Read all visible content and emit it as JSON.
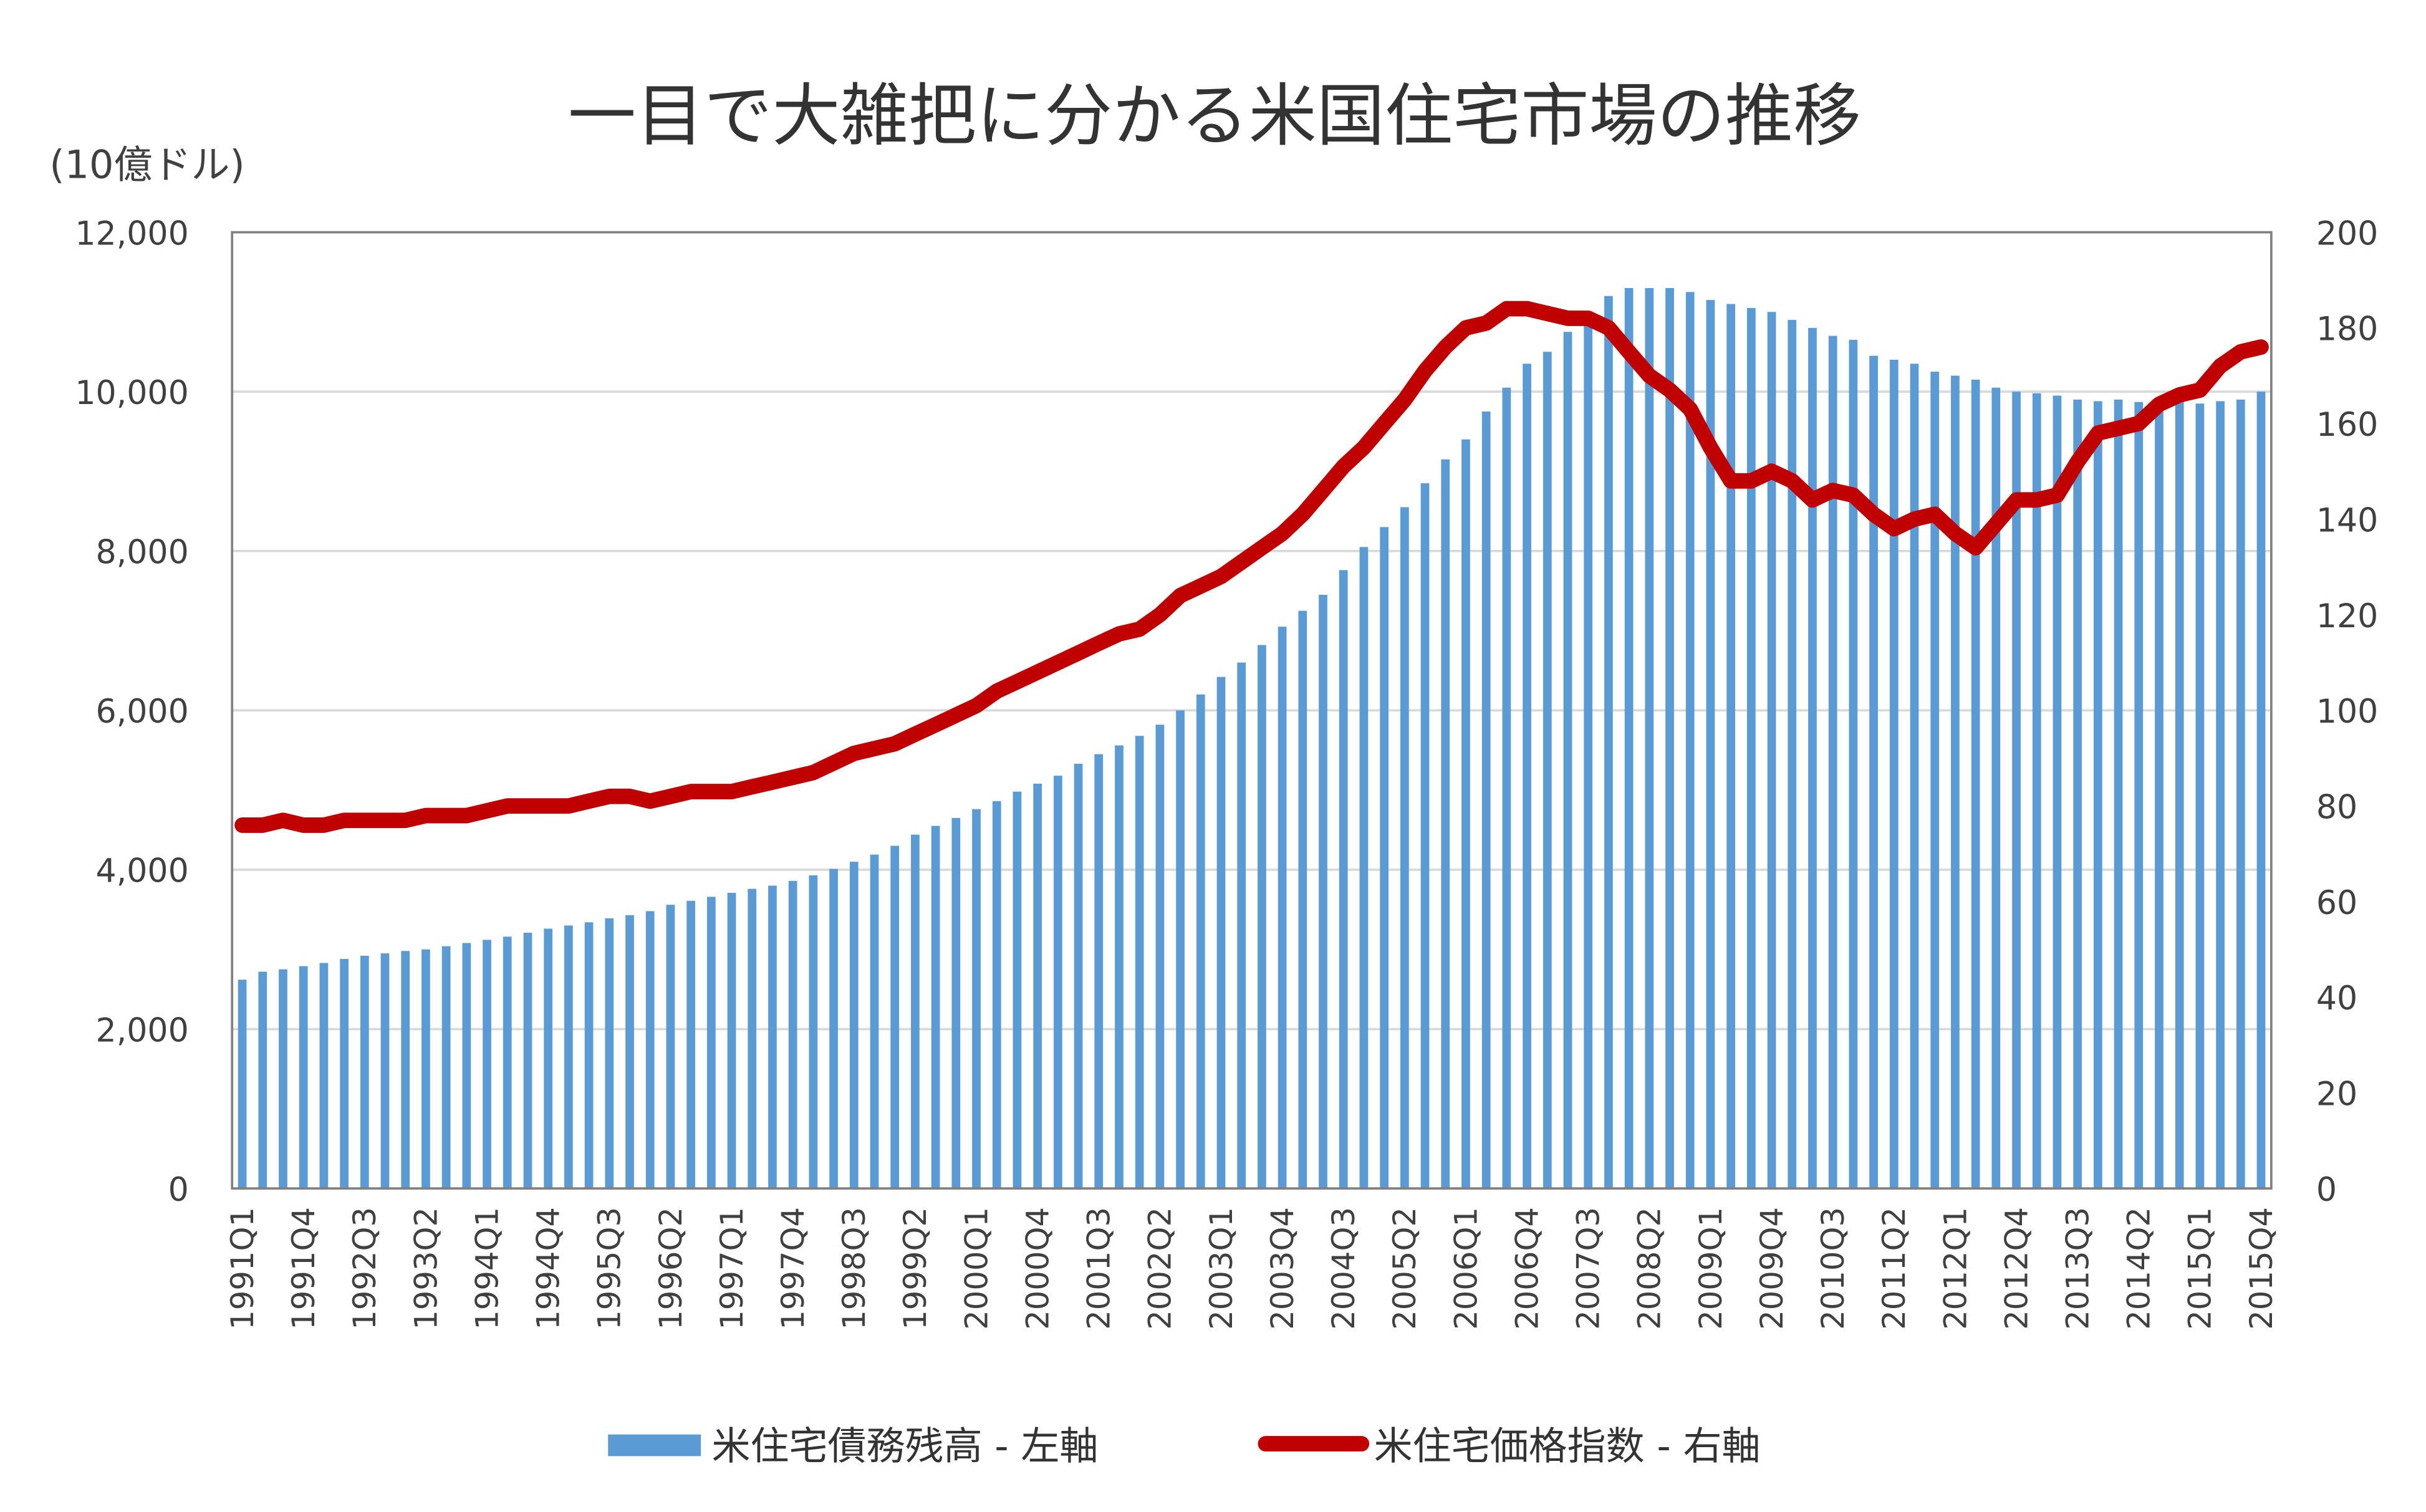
{
  "chart_data": {
    "type": "bar+line",
    "title": "一目で大雑把に分かる米国住宅市場の推移",
    "ylabel_left": "(10億ドル)",
    "y_left_ticks": [
      "0",
      "2,000",
      "4,000",
      "6,000",
      "8,000",
      "10,000",
      "12,000"
    ],
    "y_left_range": [
      0,
      12000
    ],
    "y_right_ticks": [
      "0",
      "20",
      "40",
      "60",
      "80",
      "100",
      "120",
      "140",
      "160",
      "180",
      "200"
    ],
    "y_right_range": [
      0,
      200
    ],
    "grid": true,
    "legend_position": "bottom",
    "x_first": "1991Q1",
    "x_last": "2015Q4",
    "x_tick_labels": [
      "1991Q1",
      "1991Q4",
      "1992Q3",
      "1993Q2",
      "1994Q1",
      "1994Q4",
      "1995Q3",
      "1996Q2",
      "1997Q1",
      "1997Q4",
      "1998Q3",
      "1999Q2",
      "2000Q1",
      "2000Q4",
      "2001Q3",
      "2002Q2",
      "2003Q1",
      "2003Q4",
      "2004Q3",
      "2005Q2",
      "2006Q1",
      "2006Q4",
      "2007Q3",
      "2008Q2",
      "2009Q1",
      "2009Q4",
      "2010Q3",
      "2011Q2",
      "2012Q1",
      "2012Q4",
      "2013Q3",
      "2014Q2",
      "2015Q1",
      "2015Q4"
    ],
    "series": [
      {
        "name": "米住宅債務残高 - 左軸",
        "type": "bar",
        "axis": "left",
        "color": "#5B9BD5",
        "values": [
          2620,
          2720,
          2750,
          2790,
          2830,
          2880,
          2920,
          2950,
          2980,
          3000,
          3040,
          3080,
          3120,
          3160,
          3210,
          3260,
          3300,
          3340,
          3390,
          3430,
          3480,
          3560,
          3610,
          3660,
          3710,
          3760,
          3800,
          3860,
          3930,
          4010,
          4100,
          4190,
          4300,
          4440,
          4550,
          4650,
          4760,
          4860,
          4980,
          5080,
          5180,
          5330,
          5450,
          5560,
          5680,
          5820,
          6000,
          6200,
          6420,
          6600,
          6820,
          7050,
          7250,
          7450,
          7760,
          8050,
          8300,
          8550,
          8850,
          9150,
          9400,
          9750,
          10050,
          10350,
          10500,
          10750,
          10950,
          11200,
          11300,
          11300,
          11300,
          11250,
          11150,
          11100,
          11050,
          11000,
          10900,
          10800,
          10700,
          10650,
          10450,
          10400,
          10350,
          10250,
          10200,
          10150,
          10050,
          10000,
          9980,
          9950,
          9900,
          9880,
          9900,
          9870,
          9880,
          9900,
          9850,
          9880,
          9900,
          10000
        ]
      },
      {
        "name": "米住宅価格指数 - 右軸",
        "type": "line",
        "axis": "right",
        "color": "#C00000",
        "values": [
          76,
          76,
          77,
          76,
          76,
          77,
          77,
          77,
          77,
          78,
          78,
          78,
          79,
          80,
          80,
          80,
          80,
          81,
          82,
          82,
          81,
          82,
          83,
          83,
          83,
          84,
          85,
          86,
          87,
          89,
          91,
          92,
          93,
          95,
          97,
          99,
          101,
          104,
          106,
          108,
          110,
          112,
          114,
          116,
          117,
          120,
          124,
          126,
          128,
          131,
          134,
          137,
          141,
          146,
          151,
          155,
          160,
          165,
          171,
          176,
          180,
          181,
          184,
          184,
          183,
          182,
          182,
          180,
          175,
          170,
          167,
          163,
          155,
          148,
          148,
          150,
          148,
          144,
          146,
          145,
          141,
          138,
          140,
          141,
          137,
          134,
          139,
          144,
          144,
          145,
          152,
          158,
          159,
          160,
          164,
          166,
          167,
          172,
          175,
          176
        ]
      }
    ]
  }
}
